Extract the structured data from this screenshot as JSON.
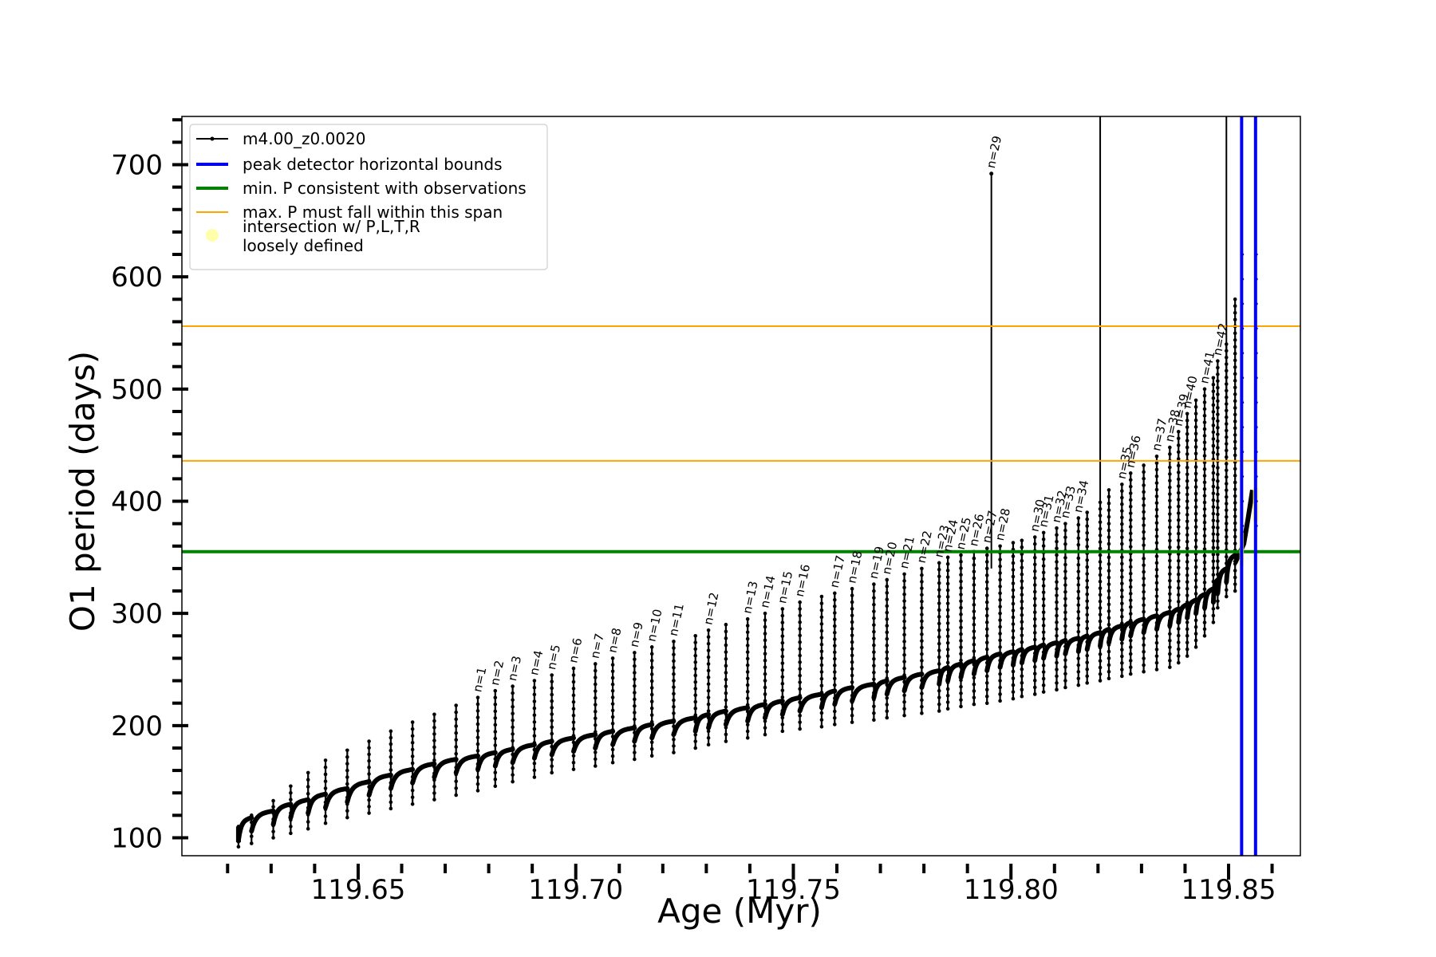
{
  "chart_data": {
    "type": "line",
    "xlabel": "Age (Myr)",
    "ylabel": "O1 period (days)",
    "xlim": [
      119.6095,
      119.8665
    ],
    "ylim": [
      84,
      743
    ],
    "x_ticks": [
      119.65,
      119.7,
      119.75,
      119.8,
      119.85
    ],
    "x_tick_labels": [
      "119.65",
      "119.70",
      "119.75",
      "119.80",
      "119.85"
    ],
    "y_ticks": [
      100,
      200,
      300,
      400,
      500,
      600,
      700
    ],
    "y_tick_labels": [
      "100",
      "200",
      "300",
      "400",
      "500",
      "600",
      "700"
    ],
    "legend_position": "upper-left",
    "legend": [
      {
        "label": "m4.00_z0.0020",
        "color": "#000000",
        "style": "line-dot"
      },
      {
        "label": "peak detector horizontal bounds",
        "color": "#0000ee",
        "style": "line"
      },
      {
        "label": "min. P consistent with observations",
        "color": "#008000",
        "style": "line"
      },
      {
        "label": "max. P must fall within this span",
        "color": "#ffa500",
        "style": "line"
      },
      {
        "label": "intersection w/ P,L,T,R",
        "label_line2": "loosely defined",
        "color": "#ffff66",
        "style": "marker"
      }
    ],
    "series": [
      {
        "name": "m4.00_z0.0020",
        "color": "#000000",
        "pulse_ages": [
          119.6225,
          119.6255,
          119.6305,
          119.6345,
          119.6385,
          119.6425,
          119.6475,
          119.6525,
          119.6575,
          119.6625,
          119.6675,
          119.6725,
          119.6775,
          119.6815,
          119.6855,
          119.6905,
          119.6945,
          119.6995,
          119.7045,
          119.7085,
          119.7135,
          119.7175,
          119.7225,
          119.7275,
          119.7305,
          119.7345,
          119.7395,
          119.7435,
          119.7475,
          119.7515,
          119.7565,
          119.7595,
          119.7635,
          119.7685,
          119.7715,
          119.7755,
          119.7795,
          119.7835,
          119.7855,
          119.7885,
          119.7915,
          119.7945,
          119.7975,
          119.8005,
          119.8025,
          119.8055,
          119.8075,
          119.8105,
          119.8125,
          119.8155,
          119.8175,
          119.8205,
          119.8225,
          119.8255,
          119.8275,
          119.8305,
          119.8335,
          119.8365,
          119.8385,
          119.8405,
          119.8425,
          119.8445,
          119.8465,
          119.8475,
          119.8495,
          119.8515
        ],
        "pulse_peaks": [
          110,
          120,
          133,
          146,
          158,
          169,
          178,
          186,
          195,
          203,
          210,
          218,
          225,
          231,
          235,
          240,
          245,
          251,
          255,
          260,
          265,
          270,
          275,
          280,
          285,
          290,
          295,
          300,
          304,
          310,
          315,
          318,
          322,
          326,
          330,
          335,
          340,
          345,
          350,
          352,
          355,
          358,
          360,
          363,
          365,
          368,
          372,
          376,
          380,
          385,
          390,
          399,
          410,
          415,
          425,
          432,
          440,
          448,
          462,
          478,
          490,
          500,
          510,
          525,
          540,
          580
        ],
        "pulse_troughs": [
          92,
          95,
          100,
          104,
          108,
          113,
          118,
          122,
          126,
          130,
          134,
          138,
          142,
          146,
          150,
          154,
          158,
          161,
          164,
          167,
          170,
          173,
          176,
          180,
          183,
          186,
          189,
          192,
          195,
          197,
          199,
          201,
          203,
          205,
          207,
          209,
          211,
          213,
          215,
          217,
          219,
          220,
          222,
          224,
          226,
          228,
          230,
          232,
          234,
          236,
          238,
          240,
          242,
          244,
          246,
          248,
          250,
          252,
          256,
          262,
          270,
          280,
          292,
          305,
          315,
          320
        ],
        "baseline_levels": [
          110,
          118,
          124,
          130,
          134,
          139,
          144,
          150,
          156,
          161,
          166,
          170,
          173,
          176,
          179,
          183,
          186,
          189,
          192,
          195,
          198,
          201,
          204,
          207,
          210,
          213,
          216,
          219,
          222,
          225,
          228,
          231,
          234,
          237,
          240,
          243,
          246,
          249,
          252,
          255,
          258,
          261,
          264,
          266,
          268,
          270,
          272,
          274,
          276,
          278,
          280,
          283,
          286,
          289,
          292,
          295,
          298,
          301,
          304,
          308,
          312,
          317,
          322,
          330,
          340,
          352
        ],
        "final_segment": {
          "x": [
            119.8515,
            119.8535,
            119.8545,
            119.8555
          ],
          "y": [
            345,
            362,
            385,
            410
          ]
        },
        "spike_lines": [
          {
            "x": 119.7955,
            "y_top": 692
          },
          {
            "x": 119.8205,
            "y_top": 743
          },
          {
            "x": 119.8495,
            "y_top": 743
          }
        ]
      },
      {
        "name": "peak detector horizontal bounds",
        "color": "#0000ee",
        "vlines": [
          119.853,
          119.8562
        ]
      },
      {
        "name": "min. P consistent with observations",
        "color": "#008000",
        "hlines": [
          355
        ]
      },
      {
        "name": "max. P must fall within this span",
        "color": "#ffa500",
        "hlines": [
          436,
          556
        ]
      },
      {
        "name": "intersection w/ P,L,T,R",
        "color": "#ffff66",
        "regions": [
          {
            "x": [
              119.8525,
              119.8535
            ],
            "y": [
              343,
              372
            ]
          },
          {
            "x": [
              119.8556,
              119.8568
            ],
            "y": [
              382,
              412
            ]
          }
        ]
      }
    ],
    "annotations": [
      {
        "text": "n=1",
        "x": 119.6775,
        "y": 225
      },
      {
        "text": "n=2",
        "x": 119.6815,
        "y": 231
      },
      {
        "text": "n=3",
        "x": 119.6855,
        "y": 235
      },
      {
        "text": "n=4",
        "x": 119.6905,
        "y": 240
      },
      {
        "text": "n=5",
        "x": 119.6945,
        "y": 245
      },
      {
        "text": "n=6",
        "x": 119.6995,
        "y": 251
      },
      {
        "text": "n=7",
        "x": 119.7045,
        "y": 255
      },
      {
        "text": "n=8",
        "x": 119.7085,
        "y": 260
      },
      {
        "text": "n=9",
        "x": 119.7135,
        "y": 265
      },
      {
        "text": "n=10",
        "x": 119.7175,
        "y": 270
      },
      {
        "text": "n=11",
        "x": 119.7225,
        "y": 275
      },
      {
        "text": "n=12",
        "x": 119.7305,
        "y": 285
      },
      {
        "text": "n=13",
        "x": 119.7395,
        "y": 295
      },
      {
        "text": "n=14",
        "x": 119.7435,
        "y": 300
      },
      {
        "text": "n=15",
        "x": 119.7475,
        "y": 304
      },
      {
        "text": "n=16",
        "x": 119.7515,
        "y": 310
      },
      {
        "text": "n=17",
        "x": 119.7595,
        "y": 318
      },
      {
        "text": "n=18",
        "x": 119.7635,
        "y": 322
      },
      {
        "text": "n=19",
        "x": 119.7685,
        "y": 326
      },
      {
        "text": "n=20",
        "x": 119.7715,
        "y": 330
      },
      {
        "text": "n=21",
        "x": 119.7755,
        "y": 335
      },
      {
        "text": "n=22",
        "x": 119.7795,
        "y": 340
      },
      {
        "text": "n=23",
        "x": 119.7835,
        "y": 345
      },
      {
        "text": "n=24",
        "x": 119.7855,
        "y": 350
      },
      {
        "text": "n=25",
        "x": 119.7885,
        "y": 352
      },
      {
        "text": "n=26",
        "x": 119.7915,
        "y": 355
      },
      {
        "text": "n=27",
        "x": 119.7945,
        "y": 358
      },
      {
        "text": "n=28",
        "x": 119.7975,
        "y": 360
      },
      {
        "text": "n=29",
        "x": 119.7955,
        "y": 692
      },
      {
        "text": "n=30",
        "x": 119.8055,
        "y": 368
      },
      {
        "text": "n=31",
        "x": 119.8075,
        "y": 372
      },
      {
        "text": "n=32",
        "x": 119.8105,
        "y": 376
      },
      {
        "text": "n=33",
        "x": 119.8125,
        "y": 380
      },
      {
        "text": "n=34",
        "x": 119.8155,
        "y": 385
      },
      {
        "text": "n=35",
        "x": 119.8255,
        "y": 415
      },
      {
        "text": "n=36",
        "x": 119.8275,
        "y": 425
      },
      {
        "text": "n=37",
        "x": 119.8335,
        "y": 440
      },
      {
        "text": "n=38",
        "x": 119.8365,
        "y": 448
      },
      {
        "text": "n=39",
        "x": 119.8385,
        "y": 462
      },
      {
        "text": "n=40",
        "x": 119.8405,
        "y": 478
      },
      {
        "text": "n=41",
        "x": 119.8445,
        "y": 500
      },
      {
        "text": "n=42",
        "x": 119.8475,
        "y": 525
      }
    ]
  }
}
